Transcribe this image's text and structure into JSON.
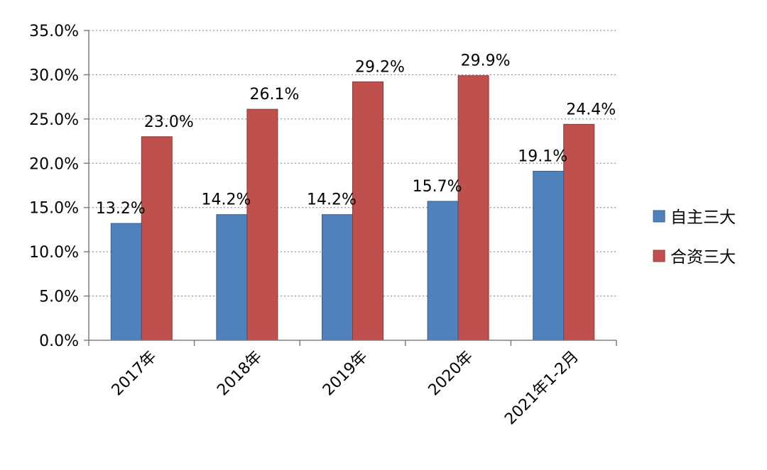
{
  "chart_data": {
    "type": "bar",
    "categories": [
      "2017年",
      "2018年",
      "2019年",
      "2020年",
      "2021年1-2月"
    ],
    "series": [
      {
        "name": "自主三大",
        "color": "#4F81BD",
        "values": [
          13.2,
          14.2,
          14.2,
          15.7,
          19.1
        ]
      },
      {
        "name": "合资三大",
        "color": "#C0504D",
        "values": [
          23.0,
          26.1,
          29.2,
          29.9,
          24.4
        ]
      }
    ],
    "data_labels": [
      [
        "13.2%",
        "14.2%",
        "14.2%",
        "15.7%",
        "19.1%"
      ],
      [
        "23.0%",
        "26.1%",
        "29.2%",
        "29.9%",
        "24.4%"
      ]
    ],
    "y_ticks": [
      "0.0%",
      "5.0%",
      "10.0%",
      "15.0%",
      "20.0%",
      "25.0%",
      "30.0%",
      "35.0%"
    ],
    "ylim": [
      0,
      35
    ],
    "y_step": 5,
    "grid": "dotted horizontal",
    "legend_position": "right",
    "title": "",
    "xlabel": "",
    "ylabel": ""
  }
}
